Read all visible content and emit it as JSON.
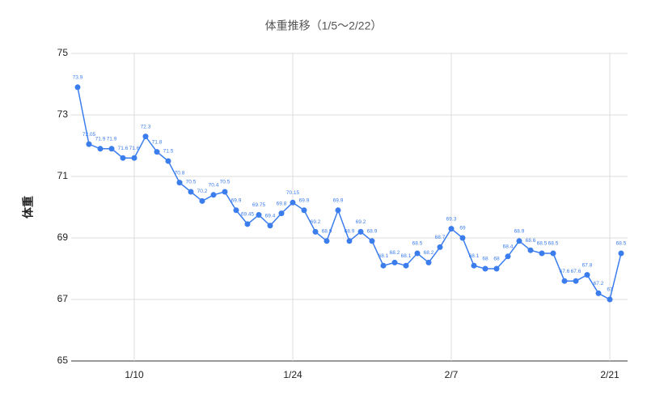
{
  "chart_data": {
    "type": "line",
    "title": "体重推移（1/5〜2/22）",
    "y_label": "体重",
    "categories": [
      null,
      null,
      null,
      null,
      null,
      "1/10",
      null,
      null,
      null,
      null,
      null,
      null,
      null,
      null,
      null,
      null,
      null,
      null,
      null,
      "1/24",
      null,
      null,
      null,
      null,
      null,
      null,
      null,
      null,
      null,
      null,
      null,
      null,
      null,
      "2/7",
      null,
      null,
      null,
      null,
      null,
      null,
      null,
      null,
      null,
      null,
      null,
      null,
      null,
      "2/21",
      null
    ],
    "series": [
      {
        "name": "体重",
        "color": "#3b7ded",
        "values": [
          73.9,
          72.05,
          71.9,
          71.9,
          71.6,
          71.6,
          72.3,
          71.8,
          71.5,
          70.8,
          70.5,
          70.2,
          70.4,
          70.5,
          69.9,
          69.45,
          69.75,
          69.4,
          69.8,
          70.15,
          69.9,
          69.2,
          68.9,
          69.9,
          68.9,
          69.2,
          68.9,
          68.1,
          68.2,
          68.1,
          68.5,
          68.2,
          68.7,
          69.3,
          69,
          68.1,
          68,
          68,
          68.4,
          68.9,
          68.6,
          68.5,
          68.5,
          67.6,
          67.6,
          67.8,
          67.2,
          67,
          68.5
        ]
      }
    ],
    "ylim": [
      65,
      75
    ],
    "yticks": [
      65,
      67,
      69,
      71,
      73,
      75
    ],
    "grid": true
  }
}
